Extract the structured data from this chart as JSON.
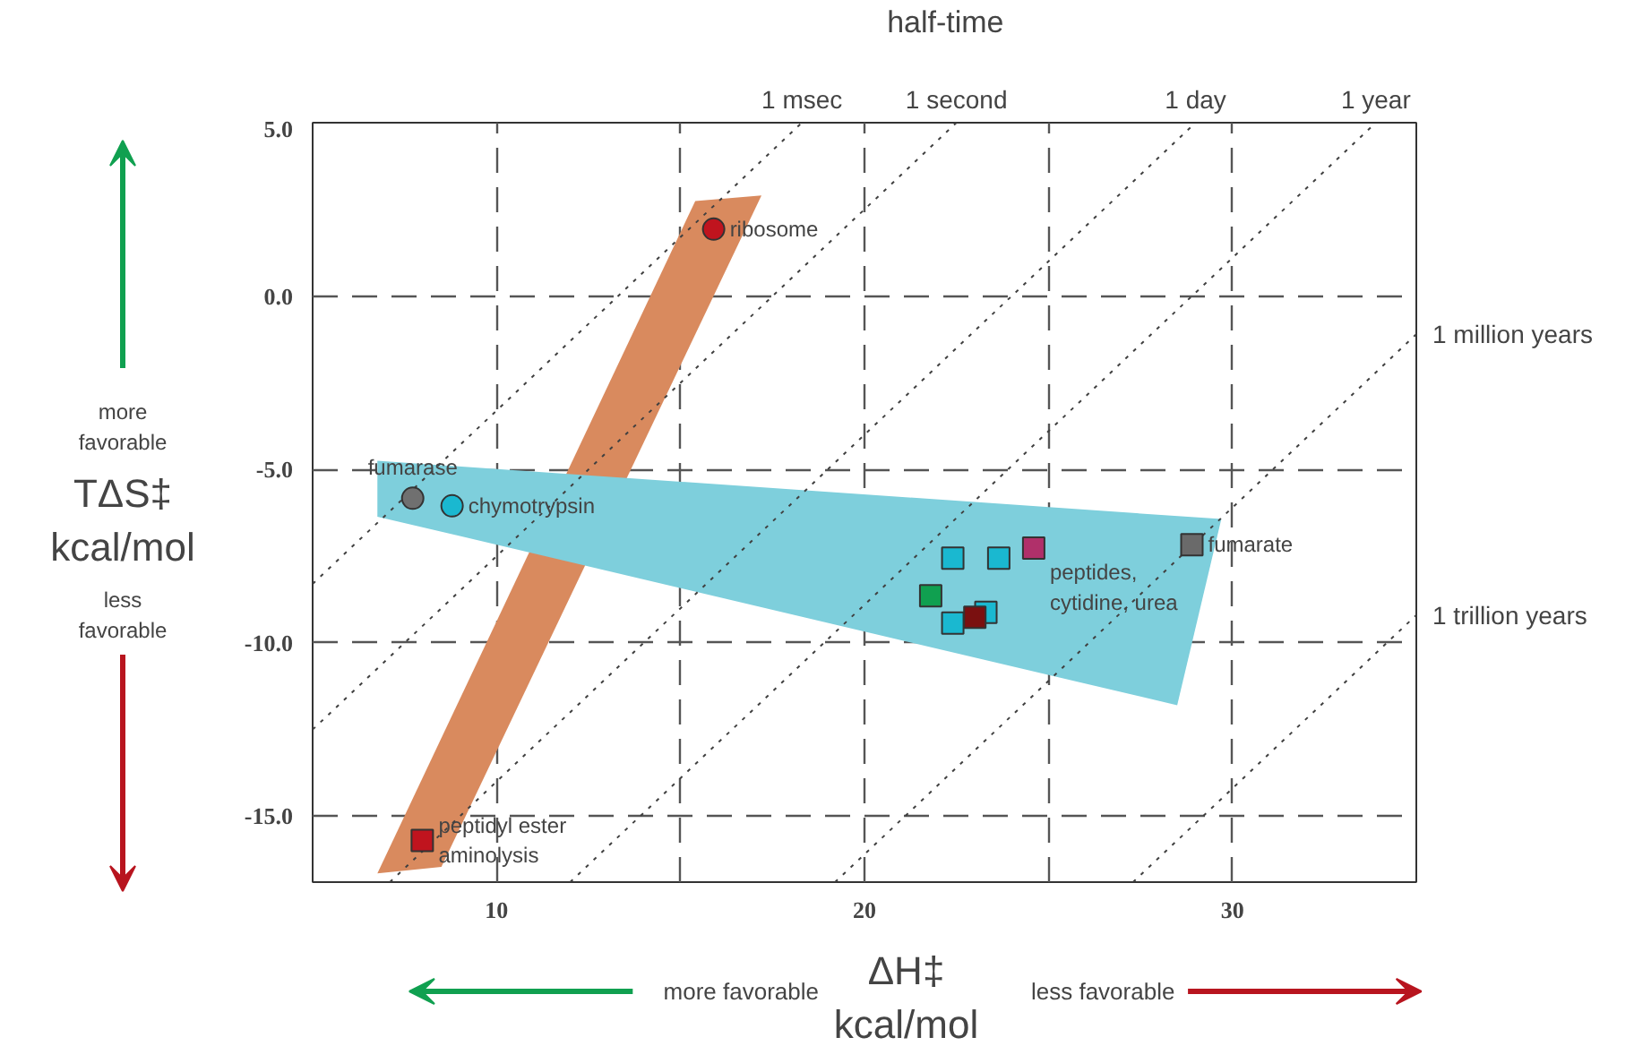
{
  "chart_data": {
    "type": "scatter",
    "title": "half-time",
    "xlabel": "ΔH‡\nkcal/mol",
    "ylabel": "TΔS‡\nkcal/mol",
    "xlim": [
      5,
      35
    ],
    "ylim": [
      -16.9,
      5.0
    ],
    "xticks": [
      10,
      {
        "value": 15,
        "label": null
      },
      20,
      {
        "value": 25,
        "label": null
      },
      30
    ],
    "yticks": [
      {
        "value": 5,
        "label": "5.0"
      },
      {
        "value": 0,
        "label": "0.0"
      },
      {
        "value": -5,
        "label": "-5.0"
      },
      {
        "value": -10,
        "label": "-10.0"
      },
      {
        "value": -15,
        "label": "-15.0"
      }
    ],
    "grid": true,
    "series": [
      {
        "type": "area",
        "color": "#d98a5e",
        "x": [
          6.76,
          8.5,
          17.2,
          15.4
        ],
        "values": [
          -16.65,
          -16.46,
          2.9,
          2.74
        ]
      },
      {
        "type": "area",
        "color": "#7ecfdc",
        "x": [
          6.76,
          29.7,
          28.5,
          6.76
        ],
        "values": [
          -4.75,
          -6.43,
          -11.8,
          -6.36
        ]
      },
      {
        "type": "line",
        "name": "1 msec",
        "color": "#404040",
        "line_style": "dotted",
        "x": [
          5,
          18.3
        ],
        "values": [
          -8.3,
          5.0
        ]
      },
      {
        "type": "line",
        "name": "1 second",
        "color": "#404040",
        "line_style": "dotted",
        "x": [
          5,
          22.5
        ],
        "values": [
          -12.5,
          5.0
        ]
      },
      {
        "type": "line",
        "name": "1 day",
        "color": "#404040",
        "line_style": "dotted",
        "x": [
          7.1,
          29.0
        ],
        "values": [
          -16.9,
          5.0
        ]
      },
      {
        "type": "line",
        "name": "1 year",
        "color": "#404040",
        "line_style": "dotted",
        "x": [
          12.0,
          33.9
        ],
        "values": [
          -16.9,
          5.0
        ]
      },
      {
        "type": "line",
        "name": "1 million years",
        "color": "#404040",
        "line_style": "dotted",
        "x": [
          19.2,
          35
        ],
        "values": [
          -16.9,
          -1.1
        ]
      },
      {
        "type": "line",
        "name": "1 trillion years",
        "color": "#404040",
        "line_style": "dotted",
        "x": [
          27.3,
          35
        ],
        "values": [
          -16.9,
          -9.2
        ]
      },
      {
        "name": "ribosome",
        "marker": "circle",
        "color": "#c0141e",
        "x": [
          15.9
        ],
        "values": [
          1.93
        ]
      },
      {
        "name": "fumarase",
        "marker": "circle",
        "color": "#707070",
        "x": [
          7.72
        ],
        "values": [
          -5.83
        ]
      },
      {
        "name": "chymotrypsin",
        "marker": "circle",
        "color": "#1ab8d0",
        "x": [
          8.79
        ],
        "values": [
          -6.05
        ]
      },
      {
        "name": "peptidyl ester\naminolysis",
        "marker": "square",
        "color": "#c0141e",
        "x": [
          7.98
        ],
        "values": [
          -15.7
        ]
      },
      {
        "name": "fumarate",
        "marker": "square",
        "color": "#6a6a6a",
        "x": [
          28.9
        ],
        "values": [
          -7.17
        ]
      },
      {
        "name": "peptides,\ncytidine, urea",
        "marker": "square",
        "colors": [
          "#1ab8d0",
          "#1ab8d0",
          "#b0306a",
          "#10a050",
          "#1ab8d0",
          "#7a1010",
          "#1ab8d0"
        ],
        "x": [
          22.4,
          23.65,
          24.6,
          21.8,
          23.3,
          23.0,
          22.4
        ],
        "values": [
          -7.56,
          -7.56,
          -7.27,
          -8.64,
          -9.12,
          -9.26,
          -9.43
        ]
      }
    ],
    "annotations": [
      "more\nfavorable",
      "less\nfavorable",
      "more favorable",
      "less favorable"
    ]
  }
}
